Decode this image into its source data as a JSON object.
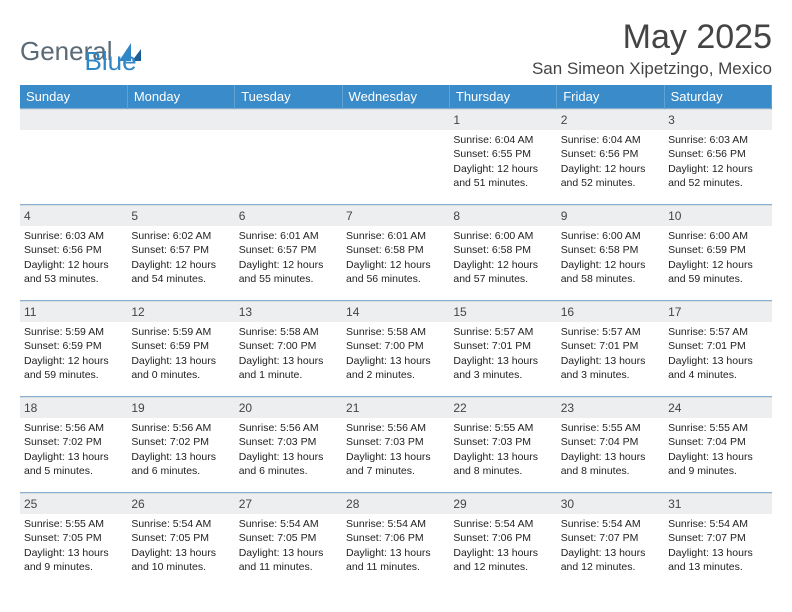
{
  "brand": {
    "text1": "General",
    "text2": "Blue"
  },
  "title": "May 2025",
  "location": "San Simeon Xipetzingo, Mexico",
  "colors": {
    "header_bg": "#3a8bc9",
    "header_fg": "#ffffff",
    "row_divider": "#8aaed0",
    "daynum_bg": "#eceeef",
    "logo_gray": "#5a6a76",
    "logo_blue": "#2f87c6"
  },
  "day_headers": [
    "Sunday",
    "Monday",
    "Tuesday",
    "Wednesday",
    "Thursday",
    "Friday",
    "Saturday"
  ],
  "weeks": [
    [
      null,
      null,
      null,
      null,
      {
        "n": "1",
        "sr": "6:04 AM",
        "ss": "6:55 PM",
        "dl": "12 hours and 51 minutes."
      },
      {
        "n": "2",
        "sr": "6:04 AM",
        "ss": "6:56 PM",
        "dl": "12 hours and 52 minutes."
      },
      {
        "n": "3",
        "sr": "6:03 AM",
        "ss": "6:56 PM",
        "dl": "12 hours and 52 minutes."
      }
    ],
    [
      {
        "n": "4",
        "sr": "6:03 AM",
        "ss": "6:56 PM",
        "dl": "12 hours and 53 minutes."
      },
      {
        "n": "5",
        "sr": "6:02 AM",
        "ss": "6:57 PM",
        "dl": "12 hours and 54 minutes."
      },
      {
        "n": "6",
        "sr": "6:01 AM",
        "ss": "6:57 PM",
        "dl": "12 hours and 55 minutes."
      },
      {
        "n": "7",
        "sr": "6:01 AM",
        "ss": "6:58 PM",
        "dl": "12 hours and 56 minutes."
      },
      {
        "n": "8",
        "sr": "6:00 AM",
        "ss": "6:58 PM",
        "dl": "12 hours and 57 minutes."
      },
      {
        "n": "9",
        "sr": "6:00 AM",
        "ss": "6:58 PM",
        "dl": "12 hours and 58 minutes."
      },
      {
        "n": "10",
        "sr": "6:00 AM",
        "ss": "6:59 PM",
        "dl": "12 hours and 59 minutes."
      }
    ],
    [
      {
        "n": "11",
        "sr": "5:59 AM",
        "ss": "6:59 PM",
        "dl": "12 hours and 59 minutes."
      },
      {
        "n": "12",
        "sr": "5:59 AM",
        "ss": "6:59 PM",
        "dl": "13 hours and 0 minutes."
      },
      {
        "n": "13",
        "sr": "5:58 AM",
        "ss": "7:00 PM",
        "dl": "13 hours and 1 minute."
      },
      {
        "n": "14",
        "sr": "5:58 AM",
        "ss": "7:00 PM",
        "dl": "13 hours and 2 minutes."
      },
      {
        "n": "15",
        "sr": "5:57 AM",
        "ss": "7:01 PM",
        "dl": "13 hours and 3 minutes."
      },
      {
        "n": "16",
        "sr": "5:57 AM",
        "ss": "7:01 PM",
        "dl": "13 hours and 3 minutes."
      },
      {
        "n": "17",
        "sr": "5:57 AM",
        "ss": "7:01 PM",
        "dl": "13 hours and 4 minutes."
      }
    ],
    [
      {
        "n": "18",
        "sr": "5:56 AM",
        "ss": "7:02 PM",
        "dl": "13 hours and 5 minutes."
      },
      {
        "n": "19",
        "sr": "5:56 AM",
        "ss": "7:02 PM",
        "dl": "13 hours and 6 minutes."
      },
      {
        "n": "20",
        "sr": "5:56 AM",
        "ss": "7:03 PM",
        "dl": "13 hours and 6 minutes."
      },
      {
        "n": "21",
        "sr": "5:56 AM",
        "ss": "7:03 PM",
        "dl": "13 hours and 7 minutes."
      },
      {
        "n": "22",
        "sr": "5:55 AM",
        "ss": "7:03 PM",
        "dl": "13 hours and 8 minutes."
      },
      {
        "n": "23",
        "sr": "5:55 AM",
        "ss": "7:04 PM",
        "dl": "13 hours and 8 minutes."
      },
      {
        "n": "24",
        "sr": "5:55 AM",
        "ss": "7:04 PM",
        "dl": "13 hours and 9 minutes."
      }
    ],
    [
      {
        "n": "25",
        "sr": "5:55 AM",
        "ss": "7:05 PM",
        "dl": "13 hours and 9 minutes."
      },
      {
        "n": "26",
        "sr": "5:54 AM",
        "ss": "7:05 PM",
        "dl": "13 hours and 10 minutes."
      },
      {
        "n": "27",
        "sr": "5:54 AM",
        "ss": "7:05 PM",
        "dl": "13 hours and 11 minutes."
      },
      {
        "n": "28",
        "sr": "5:54 AM",
        "ss": "7:06 PM",
        "dl": "13 hours and 11 minutes."
      },
      {
        "n": "29",
        "sr": "5:54 AM",
        "ss": "7:06 PM",
        "dl": "13 hours and 12 minutes."
      },
      {
        "n": "30",
        "sr": "5:54 AM",
        "ss": "7:07 PM",
        "dl": "13 hours and 12 minutes."
      },
      {
        "n": "31",
        "sr": "5:54 AM",
        "ss": "7:07 PM",
        "dl": "13 hours and 13 minutes."
      }
    ]
  ],
  "labels": {
    "sunrise": "Sunrise: ",
    "sunset": "Sunset: ",
    "daylight": "Daylight: "
  }
}
